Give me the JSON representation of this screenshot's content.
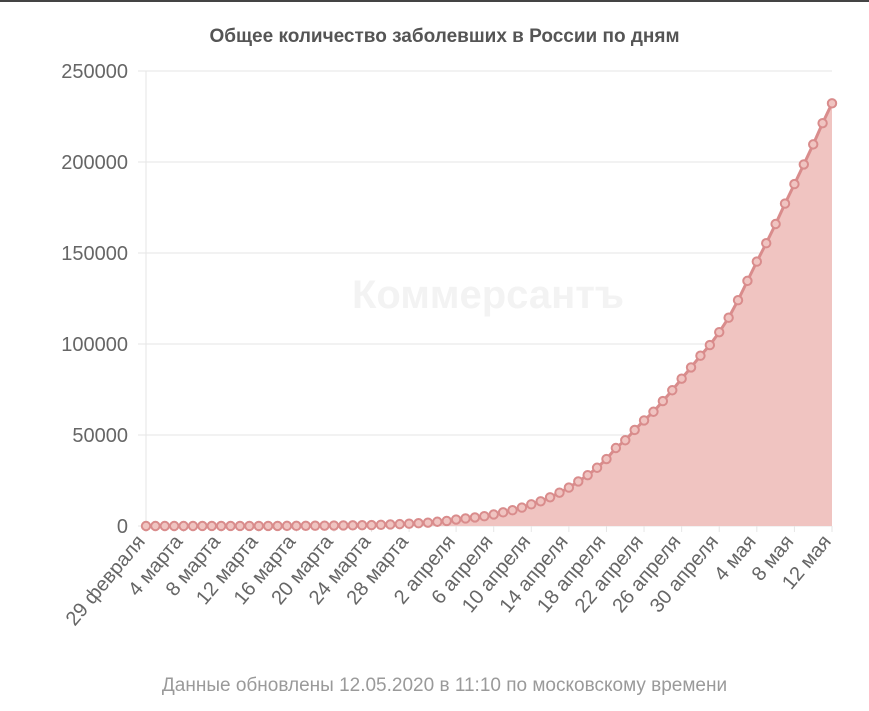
{
  "chart_data": {
    "type": "area",
    "title": "Общее количество заболевших в России по дням",
    "watermark": "Коммерсантъ",
    "footnote": "Данные обновлены 12.05.2020 в 11:10 по московскому времени",
    "ylim": [
      0,
      250000
    ],
    "yticks": [
      "0",
      "50000",
      "100000",
      "150000",
      "200000",
      "250000"
    ],
    "x_tick_labels": [
      "29 февраля",
      "4 марта",
      "8 марта",
      "12 марта",
      "16 марта",
      "20 марта",
      "24 марта",
      "28 марта",
      "2 апреля",
      "6 апреля",
      "10 апреля",
      "14 апреля",
      "18 апреля",
      "22 апреля",
      "26 апреля",
      "30 апреля",
      "4 мая",
      "8 мая",
      "12 мая"
    ],
    "grid": true,
    "legend": "none",
    "colors": {
      "line": "#d98c8c",
      "fill": "#f0c4c1",
      "grid": "#e6e6e6",
      "axis_text": "#666666"
    },
    "series": [
      {
        "x": [
          "29 февраля",
          "1 марта",
          "2 марта",
          "3 марта",
          "4 марта",
          "5 марта",
          "6 марта",
          "7 марта",
          "8 марта",
          "9 марта",
          "10 марта",
          "11 марта",
          "12 марта",
          "13 марта",
          "14 марта",
          "15 марта",
          "16 марта",
          "17 марта",
          "18 марта",
          "19 марта",
          "20 марта",
          "21 марта",
          "22 марта",
          "23 марта",
          "24 марта",
          "25 марта",
          "26 марта",
          "27 марта",
          "28 марта",
          "29 марта",
          "30 марта",
          "31 марта",
          "1 апреля",
          "2 апреля",
          "3 апреля",
          "4 апреля",
          "5 апреля",
          "6 апреля",
          "7 апреля",
          "8 апреля",
          "9 апреля",
          "10 апреля",
          "11 апреля",
          "12 апреля",
          "13 апреля",
          "14 апреля",
          "15 апреля",
          "16 апреля",
          "17 апреля",
          "18 апреля",
          "19 апреля",
          "20 апреля",
          "21 апреля",
          "22 апреля",
          "23 апреля",
          "24 апреля",
          "25 апреля",
          "26 апреля",
          "27 апреля",
          "28 апреля",
          "29 апреля",
          "30 апреля",
          "1 мая",
          "2 мая",
          "3 мая",
          "4 мая",
          "5 мая",
          "6 мая",
          "7 мая",
          "8 мая",
          "9 мая",
          "10 мая",
          "11 мая",
          "12 мая"
        ],
        "values": [
          2,
          2,
          3,
          3,
          3,
          4,
          10,
          14,
          17,
          17,
          20,
          28,
          34,
          45,
          59,
          63,
          90,
          114,
          147,
          199,
          253,
          306,
          367,
          438,
          495,
          658,
          840,
          1036,
          1264,
          1534,
          1836,
          2337,
          2777,
          3548,
          4149,
          4731,
          5389,
          6343,
          7497,
          8672,
          10131,
          11917,
          13584,
          15770,
          18328,
          21102,
          24490,
          27938,
          32008,
          36793,
          42853,
          47121,
          52763,
          57999,
          62773,
          68622,
          74588,
          80949,
          87147,
          93558,
          99399,
          106498,
          114431,
          124054,
          134686,
          145268,
          155370,
          165929,
          177160,
          187859,
          198676,
          209688,
          221344,
          232243
        ]
      }
    ]
  }
}
